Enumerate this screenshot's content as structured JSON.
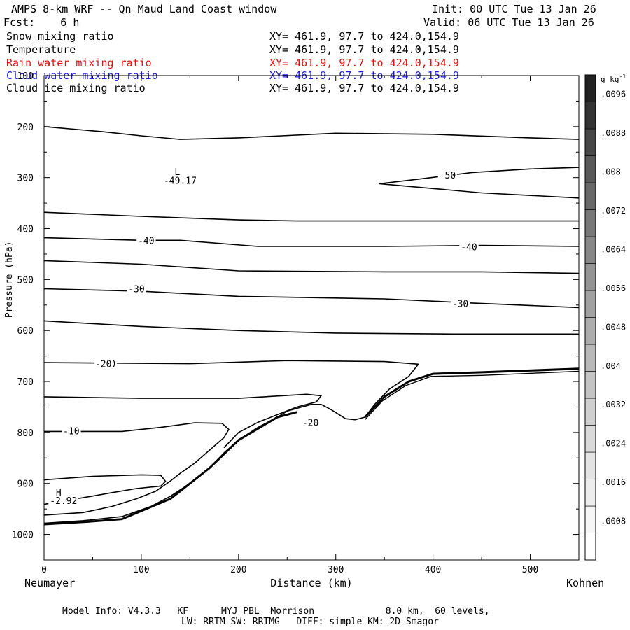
{
  "header": {
    "title": "AMPS 8-km WRF -- Qn Maud Land Coast window",
    "init": "Init: 00 UTC Tue 13 Jan 26",
    "fcst": "Fcst:    6 h",
    "valid": "Valid: 06 UTC Tue 13 Jan 26"
  },
  "fields": [
    {
      "name": "Snow mixing ratio",
      "xy": "XY= 461.9, 97.7 to 424.0,154.9",
      "color": "#000000"
    },
    {
      "name": "Temperature",
      "xy": "XY= 461.9, 97.7 to 424.0,154.9",
      "color": "#000000"
    },
    {
      "name": "Rain water mixing ratio",
      "xy": "XY= 461.9, 97.7 to 424.0,154.9",
      "color": "#e01010"
    },
    {
      "name": "Cloud water mixing ratio",
      "xy": "XY= 461.9, 97.7 to 424.0,154.9",
      "color": "#2020d0"
    },
    {
      "name": "Cloud ice mixing ratio",
      "xy": "XY= 461.9, 97.7 to 424.0,154.9",
      "color": "#000000"
    }
  ],
  "chart_data": {
    "type": "line",
    "description_kind": "vertical cross-section contour plot",
    "xlabel": "Distance (km)",
    "ylabel": "Pressure (hPa)",
    "xlim": [
      0,
      550
    ],
    "ylim": [
      1050,
      100
    ],
    "x_ticks": [
      0,
      100,
      200,
      300,
      400,
      500
    ],
    "y_ticks": [
      100,
      200,
      300,
      400,
      500,
      600,
      700,
      800,
      900,
      1000
    ],
    "start_label": "Neumayer",
    "end_label": "Kohnen",
    "contours": [
      {
        "level": "iso-a",
        "points": [
          [
            0,
            200
          ],
          [
            60,
            210
          ],
          [
            100,
            218
          ],
          [
            140,
            225
          ],
          [
            200,
            222
          ],
          [
            300,
            213
          ],
          [
            400,
            215
          ],
          [
            500,
            222
          ],
          [
            550,
            225
          ]
        ]
      },
      {
        "level": -50,
        "label": "-50",
        "label_at": [
          415,
          295
        ],
        "points": [
          [
            550,
            280
          ],
          [
            500,
            283
          ],
          [
            440,
            290
          ],
          [
            390,
            302
          ],
          [
            345,
            312
          ],
          [
            380,
            318
          ],
          [
            450,
            330
          ],
          [
            550,
            340
          ]
        ]
      },
      {
        "level": "iso-b",
        "points": [
          [
            0,
            368
          ],
          [
            100,
            376
          ],
          [
            200,
            383
          ],
          [
            260,
            385
          ],
          [
            400,
            385
          ],
          [
            550,
            385
          ]
        ]
      },
      {
        "level": -40,
        "label": "-40",
        "label_at": [
          105,
          423
        ],
        "points": [
          [
            0,
            418
          ],
          [
            100,
            423
          ],
          [
            140,
            423
          ],
          [
            220,
            435
          ],
          [
            350,
            435
          ],
          [
            450,
            433
          ],
          [
            550,
            435
          ]
        ]
      },
      {
        "level": "iso-c",
        "points": [
          [
            0,
            463
          ],
          [
            100,
            470
          ],
          [
            200,
            483
          ],
          [
            350,
            485
          ],
          [
            450,
            485
          ],
          [
            550,
            488
          ]
        ]
      },
      {
        "level": -30,
        "label": "-30",
        "label_at": [
          95,
          518
        ],
        "points": [
          [
            0,
            518
          ],
          [
            100,
            523
          ],
          [
            200,
            533
          ],
          [
            350,
            538
          ],
          [
            440,
            546
          ],
          [
            550,
            555
          ]
        ]
      },
      {
        "level": "iso-d",
        "points": [
          [
            0,
            581
          ],
          [
            100,
            592
          ],
          [
            200,
            600
          ],
          [
            300,
            605
          ],
          [
            420,
            607
          ],
          [
            550,
            607
          ]
        ]
      },
      {
        "level": -20,
        "label": "-20",
        "label_at": [
          65,
          665
        ],
        "points": [
          [
            0,
            663
          ],
          [
            150,
            665
          ],
          [
            200,
            662
          ],
          [
            250,
            659
          ],
          [
            350,
            661
          ],
          [
            385,
            666
          ],
          [
            375,
            690
          ],
          [
            355,
            715
          ],
          [
            340,
            745
          ],
          [
            330,
            770
          ],
          [
            320,
            775
          ],
          [
            310,
            773
          ],
          [
            295,
            755
          ],
          [
            285,
            745
          ],
          [
            275,
            745
          ],
          [
            265,
            750
          ],
          [
            250,
            758
          ],
          [
            240,
            770
          ],
          [
            220,
            790
          ],
          [
            200,
            815
          ],
          [
            185,
            840
          ],
          [
            170,
            870
          ],
          [
            150,
            900
          ],
          [
            130,
            925
          ],
          [
            110,
            945
          ],
          [
            80,
            965
          ],
          [
            40,
            973
          ],
          [
            0,
            978
          ]
        ]
      },
      {
        "level": "iso-e",
        "points": [
          [
            0,
            730
          ],
          [
            100,
            733
          ],
          [
            200,
            733
          ],
          [
            270,
            725
          ],
          [
            285,
            728
          ],
          [
            280,
            740
          ],
          [
            260,
            750
          ],
          [
            240,
            765
          ],
          [
            220,
            780
          ],
          [
            200,
            800
          ],
          [
            185,
            830
          ]
        ]
      },
      {
        "level": -10,
        "label": "-10",
        "label_at": [
          28,
          797
        ],
        "points": [
          [
            0,
            798
          ],
          [
            80,
            798
          ],
          [
            120,
            790
          ],
          [
            155,
            781
          ],
          [
            183,
            782
          ],
          [
            190,
            794
          ],
          [
            185,
            810
          ],
          [
            170,
            835
          ],
          [
            155,
            860
          ],
          [
            140,
            880
          ],
          [
            130,
            895
          ],
          [
            115,
            915
          ],
          [
            95,
            930
          ],
          [
            70,
            945
          ],
          [
            40,
            957
          ],
          [
            0,
            962
          ]
        ]
      },
      {
        "level": "iso-f",
        "points": [
          [
            0,
            893
          ],
          [
            50,
            886
          ],
          [
            100,
            883
          ],
          [
            120,
            884
          ],
          [
            125,
            896
          ],
          [
            120,
            905
          ],
          [
            95,
            910
          ],
          [
            70,
            918
          ],
          [
            40,
            928
          ],
          [
            0,
            941
          ]
        ]
      }
    ],
    "annotations": [
      {
        "text": "L",
        "at": [
          137,
          288
        ]
      },
      {
        "text": "-49.17",
        "at": [
          140,
          305
        ]
      },
      {
        "text": "H",
        "at": [
          15,
          917
        ]
      },
      {
        "text": "-2.92",
        "at": [
          20,
          933
        ]
      },
      {
        "text": "-40",
        "at": [
          437,
          436
        ]
      },
      {
        "text": "-30",
        "at": [
          428,
          547
        ]
      },
      {
        "text": "-20",
        "at": [
          61,
          665
        ]
      },
      {
        "text": "-20",
        "at": [
          274,
          780
        ]
      }
    ],
    "colorbar": {
      "unit": "g kg",
      "unit_exponent": "-1",
      "range": [
        0,
        0.01
      ],
      "ticks": [
        ".0008",
        ".0016",
        ".0024",
        ".0032",
        ".004",
        ".0048",
        ".0056",
        ".0064",
        ".0072",
        ".008",
        ".0088",
        ".0096"
      ],
      "shades": [
        "#ffffff",
        "#f6f6f6",
        "#ededed",
        "#e3e3e3",
        "#d9d9d9",
        "#cfcfcf",
        "#c4c4c4",
        "#b9b9b9",
        "#adadad",
        "#a1a1a1",
        "#949494",
        "#878787",
        "#787878",
        "#696969",
        "#595959",
        "#474747",
        "#343434",
        "#222222"
      ]
    }
  },
  "footer": {
    "line1": "Model Info: V4.3.3   KF      MYJ PBL  Morrison             8.0 km,  60 levels,",
    "line2": "LW: RRTM SW: RRTMG   DIFF: simple KM: 2D Smagor"
  }
}
